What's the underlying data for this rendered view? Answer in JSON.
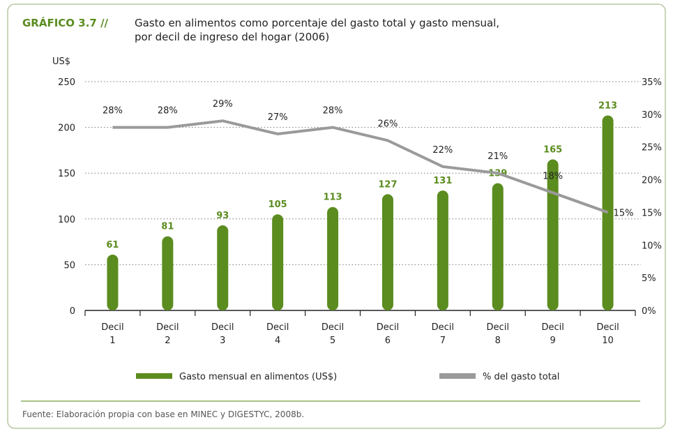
{
  "chart_data": {
    "type": "bar_line",
    "label": "GRÁFICO 3.7 //",
    "title": [
      "Gasto en alimentos como porcentaje del gasto total y gasto mensual,",
      "por decil de ingreso del hogar (2006)"
    ],
    "y_label": "US$",
    "categories": [
      "Decil 1",
      "Decil 2",
      "Decil 3",
      "Decil 4",
      "Decil 5",
      "Decil 6",
      "Decil 7",
      "Decil 8",
      "Decil 9",
      "Decil 10"
    ],
    "series": [
      {
        "name": "Gasto mensual en alimentos (US$)",
        "color": "#5b8c1f",
        "type": "bar",
        "values": [
          61,
          81,
          93,
          105,
          113,
          127,
          131,
          139,
          165,
          213
        ]
      },
      {
        "name": "% del gasto total",
        "color": "#9a9a9a",
        "type": "line",
        "axis": "y2",
        "values": [
          28,
          28,
          29,
          27,
          28,
          26,
          22,
          21,
          18,
          15
        ],
        "value_labels": [
          "28%",
          "28%",
          "29%",
          "27%",
          "28%",
          "26%",
          "22%",
          "21%",
          "18%",
          "15%"
        ]
      }
    ],
    "ylim": [
      0,
      250
    ],
    "yticks": [
      0,
      50,
      100,
      150,
      200,
      250
    ],
    "y2lim": [
      0,
      35
    ],
    "y2ticks": [
      {
        "value": 0,
        "label": "0%"
      },
      {
        "value": 5,
        "label": "5%"
      },
      {
        "value": 10,
        "label": "10%"
      },
      {
        "value": 15,
        "label": "15%"
      },
      {
        "value": 20,
        "label": "20%"
      },
      {
        "value": 25,
        "label": "25%"
      },
      {
        "value": 30,
        "label": "30%"
      },
      {
        "value": 35,
        "label": "35%"
      }
    ],
    "grid": true,
    "source": "Fuente: Elaboración propia con base en MINEC y DIGESTYC, 2008b."
  }
}
